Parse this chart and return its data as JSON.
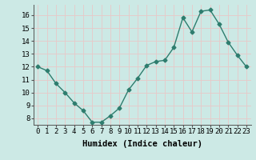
{
  "x": [
    0,
    1,
    2,
    3,
    4,
    5,
    6,
    7,
    8,
    9,
    10,
    11,
    12,
    13,
    14,
    15,
    16,
    17,
    18,
    19,
    20,
    21,
    22,
    23
  ],
  "y": [
    12.0,
    11.7,
    10.7,
    10.0,
    9.2,
    8.6,
    7.7,
    7.7,
    8.2,
    8.8,
    10.2,
    11.1,
    12.1,
    12.4,
    12.5,
    13.5,
    15.8,
    14.7,
    16.3,
    16.4,
    15.3,
    13.9,
    12.9,
    12.0
  ],
  "xlabel": "Humidex (Indice chaleur)",
  "line_color": "#2e7d6e",
  "marker": "D",
  "marker_size": 2.5,
  "bg_color": "#cce9e5",
  "grid_color": "#e8c8c8",
  "ylim": [
    7.5,
    16.8
  ],
  "yticks": [
    8,
    9,
    10,
    11,
    12,
    13,
    14,
    15,
    16
  ],
  "xticks": [
    0,
    1,
    2,
    3,
    4,
    5,
    6,
    7,
    8,
    9,
    10,
    11,
    12,
    13,
    14,
    15,
    16,
    17,
    18,
    19,
    20,
    21,
    22,
    23
  ],
  "tick_fontsize": 6.5,
  "xlabel_fontsize": 7.5
}
